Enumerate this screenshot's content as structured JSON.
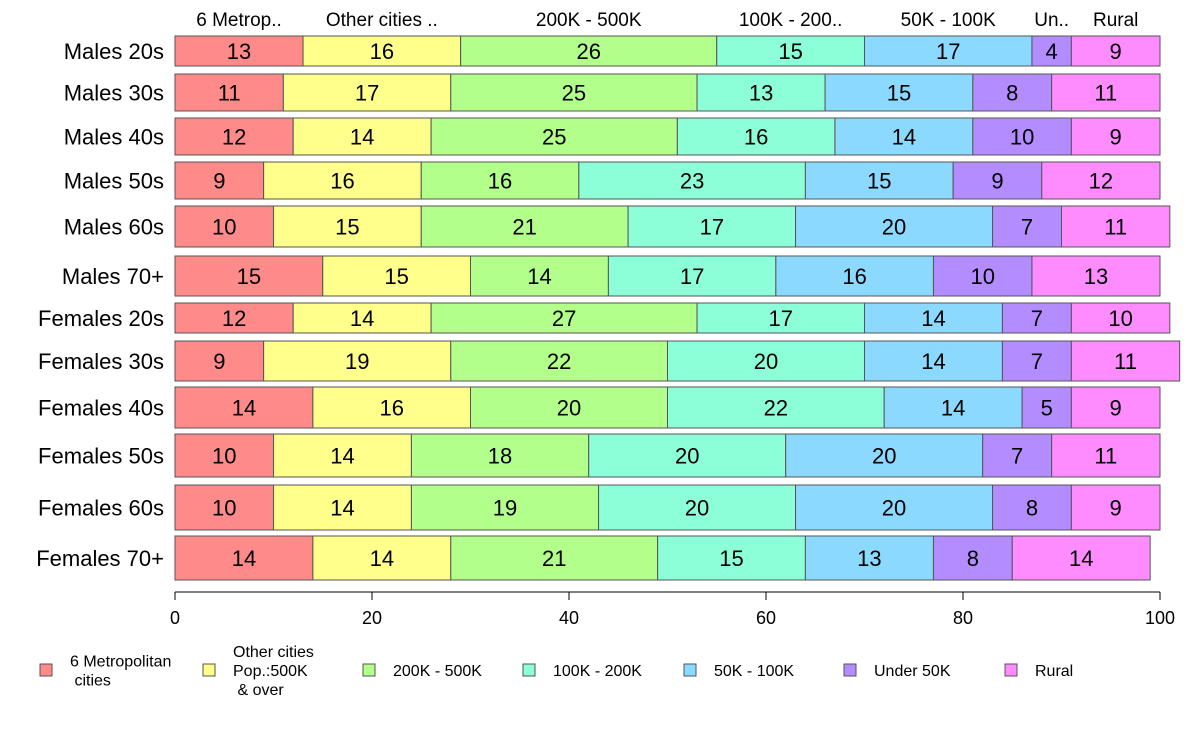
{
  "chart_data": {
    "type": "bar",
    "orientation": "horizontal",
    "stacked": true,
    "categories": [
      "Males 20s",
      "Males 30s",
      "Males 40s",
      "Males 50s",
      "Males 60s",
      "Males 70+",
      "Females 20s",
      "Females 30s",
      "Females 40s",
      "Females 50s",
      "Females 60s",
      "Females 70+"
    ],
    "series": [
      {
        "name": "6 Metropolitan\n cities",
        "short": "6 Metrop..",
        "color": "#FF8A8A",
        "values": [
          13,
          11,
          12,
          9,
          10,
          15,
          12,
          9,
          14,
          10,
          10,
          14
        ]
      },
      {
        "name": "Other cities\nPop.:500K\n & over",
        "short": "Other cities ..",
        "color": "#FFFF8C",
        "values": [
          16,
          17,
          14,
          16,
          15,
          15,
          14,
          19,
          16,
          14,
          14,
          14
        ]
      },
      {
        "name": "200K - 500K",
        "short": "200K - 500K",
        "color": "#B3FF8C",
        "values": [
          26,
          25,
          25,
          16,
          21,
          14,
          27,
          22,
          20,
          18,
          19,
          21
        ]
      },
      {
        "name": "100K - 200K",
        "short": "100K - 200..",
        "color": "#8CFFD9",
        "values": [
          15,
          13,
          16,
          23,
          17,
          17,
          17,
          20,
          22,
          20,
          20,
          15
        ]
      },
      {
        "name": "50K - 100K",
        "short": "50K - 100K",
        "color": "#8CD9FF",
        "values": [
          17,
          15,
          14,
          15,
          20,
          16,
          14,
          14,
          14,
          20,
          20,
          13
        ]
      },
      {
        "name": "Under 50K",
        "short": "Un..",
        "color": "#B38CFF",
        "values": [
          4,
          8,
          10,
          9,
          7,
          10,
          7,
          7,
          5,
          7,
          8,
          8
        ]
      },
      {
        "name": "Rural",
        "short": "Rural",
        "color": "#FF8CFF",
        "values": [
          9,
          11,
          9,
          12,
          11,
          13,
          10,
          11,
          9,
          11,
          9,
          14
        ]
      }
    ],
    "xlim": [
      0,
      100
    ],
    "xticks": [
      0,
      20,
      40,
      60,
      80,
      100
    ],
    "xlabel": "",
    "ylabel": "",
    "title": "",
    "grid": false,
    "legend_position": "bottom"
  }
}
